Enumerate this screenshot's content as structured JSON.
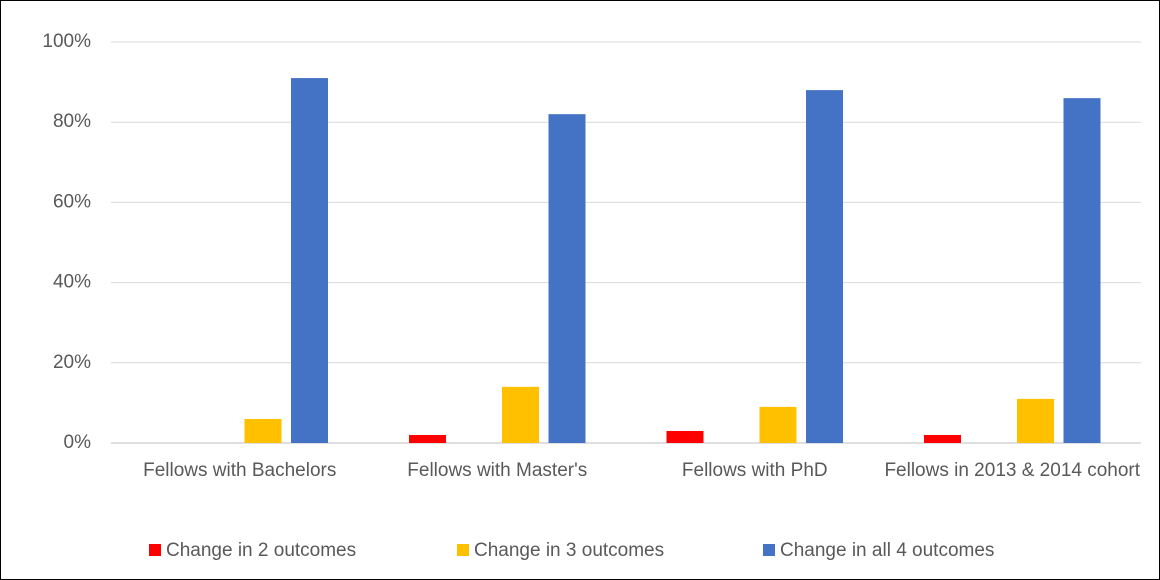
{
  "chart_data": {
    "type": "bar",
    "categories": [
      "Fellows with Bachelors",
      "Fellows with Master's",
      "Fellows with PhD",
      "Fellows in 2013 & 2014 cohort"
    ],
    "series": [
      {
        "name": "Change in 2 outcomes",
        "color": "#ff0000",
        "values": [
          0,
          2,
          3,
          2
        ]
      },
      {
        "name": "Change in 3 outcomes",
        "color": "#ffc000",
        "values": [
          6,
          14,
          9,
          11
        ]
      },
      {
        "name": "Change in all 4 outcomes",
        "color": "#4472c4",
        "values": [
          91,
          82,
          88,
          86
        ]
      }
    ],
    "ylim": [
      0,
      100
    ],
    "yticks": [
      {
        "value": 0,
        "label": "0%"
      },
      {
        "value": 20,
        "label": "20%"
      },
      {
        "value": 40,
        "label": "40%"
      },
      {
        "value": 60,
        "label": "60%"
      },
      {
        "value": 80,
        "label": "80%"
      },
      {
        "value": 100,
        "label": "100%"
      }
    ],
    "grid": true,
    "legend": "bottom"
  }
}
